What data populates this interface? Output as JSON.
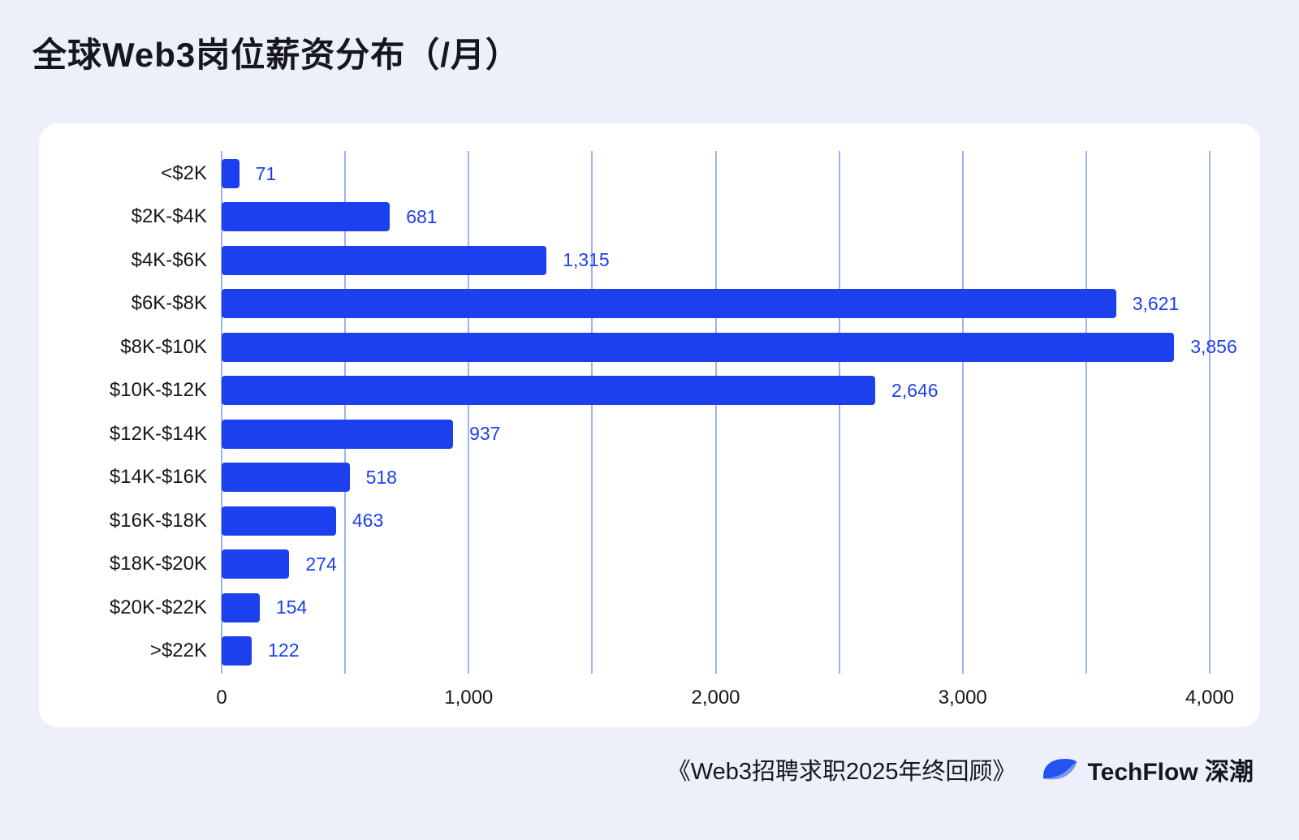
{
  "page": {
    "title": "全球Web3岗位薪资分布（/月）"
  },
  "footer": {
    "source": "《Web3招聘求职2025年终回顾》",
    "brand": "TechFlow 深潮"
  },
  "colors": {
    "bar": "#1d40ee",
    "value_label": "#1d40ee",
    "grid_line": "#9db3f0",
    "page_bg": "#edeffa",
    "card_bg": "#ffffff"
  },
  "chart_data": {
    "type": "bar",
    "orientation": "horizontal",
    "title": "全球Web3岗位薪资分布（/月）",
    "xlabel": "",
    "ylabel": "",
    "categories": [
      "<$2K",
      "$2K-$4K",
      "$4K-$6K",
      "$6K-$8K",
      "$8K-$10K",
      "$10K-$12K",
      "$12K-$14K",
      "$14K-$16K",
      "$16K-$18K",
      "$18K-$20K",
      "$20K-$22K",
      ">$22K"
    ],
    "values": [
      71,
      681,
      1315,
      3621,
      3856,
      2646,
      937,
      518,
      463,
      274,
      154,
      122
    ],
    "value_labels": [
      "71",
      "681",
      "1,315",
      "3,621",
      "3,856",
      "2,646",
      "937",
      "518",
      "463",
      "274",
      "154",
      "122"
    ],
    "xlim": [
      0,
      4000
    ],
    "x_ticks": [
      0,
      1000,
      2000,
      3000,
      4000
    ],
    "x_tick_labels": [
      "0",
      "1,000",
      "2,000",
      "3,000",
      "4,000"
    ],
    "gridline_step": 500,
    "grid": true,
    "legend": false
  }
}
